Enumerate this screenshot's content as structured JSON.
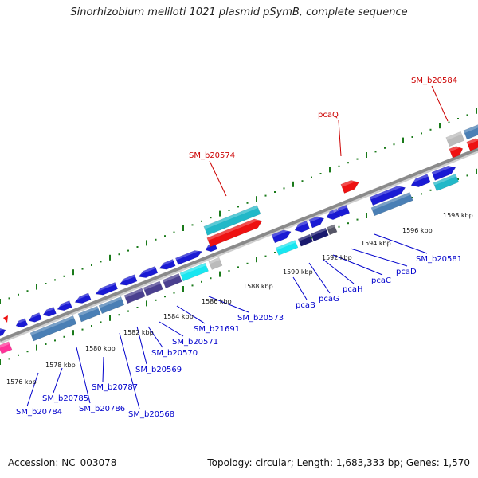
{
  "title": "Sinorhizobium meliloti 1021 plasmid pSymB, complete sequence",
  "footer": {
    "accession": "Accession: NC_003078",
    "topology": "Topology: circular; Length: 1,683,333 bp; Genes: 1,570"
  },
  "colors": {
    "backbone": "#8a8a8a",
    "tick": "#1a7a1a",
    "label_blue": "#0000cc",
    "label_red": "#cc0000",
    "gene_blue": "#1a1ad4",
    "gene_steel": "#4a7fb5",
    "gene_navy": "#1a1a6e",
    "gene_slate": "#4a3f8f",
    "gene_cyan": "#19e6f0",
    "gene_teal": "#22b8c8",
    "gene_red": "#ee1111",
    "gene_grey": "#bbbbbb",
    "gene_pink": "#ff3399"
  },
  "scale_labels": [
    "1576 kbp",
    "1578 kbp",
    "1580 kbp",
    "1582 kbp",
    "1584 kbp",
    "1586 kbp",
    "1588 kbp",
    "1590 kbp",
    "1592 kbp",
    "1594 kbp",
    "1596 kbp",
    "1598 kbp"
  ],
  "gene_labels_blue": [
    "SM_b20784",
    "SM_b20785",
    "SM_b20786",
    "SM_b20787",
    "SM_b20568",
    "SM_b20569",
    "SM_b20570",
    "SM_b20571",
    "SM_b21691",
    "SM_b20573",
    "pcaB",
    "pcaG",
    "pcaH",
    "pcaC",
    "pcaD",
    "SM_b20581"
  ],
  "gene_labels_red": [
    "SM_b20574",
    "pcaQ",
    "SM_b20584"
  ]
}
